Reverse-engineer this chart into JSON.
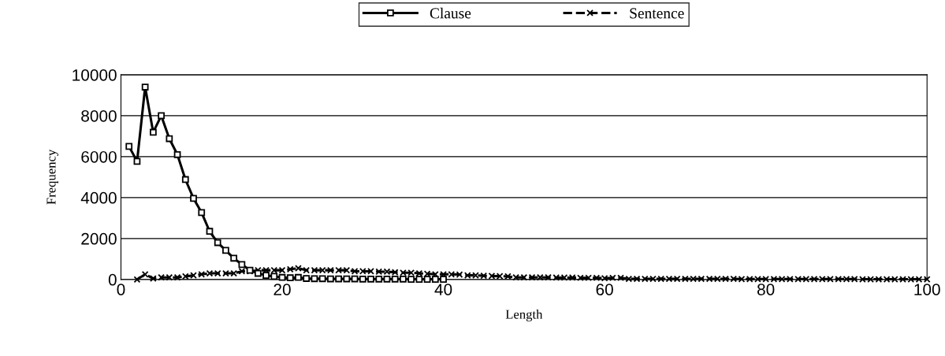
{
  "chart_data": {
    "type": "line",
    "xlabel": "Length",
    "ylabel": "Frequency",
    "xlim": [
      0,
      100
    ],
    "xticks": [
      0,
      20,
      40,
      60,
      80,
      100
    ],
    "ylim": [
      0,
      10000
    ],
    "yticks": [
      0,
      2000,
      4000,
      6000,
      8000,
      10000
    ],
    "grid": "y",
    "legend": "top",
    "series": [
      {
        "name": "Clause",
        "color": "#000000",
        "marker": "square",
        "line_style": "solid",
        "x": [
          1,
          2,
          3,
          4,
          5,
          6,
          7,
          8,
          9,
          10,
          11,
          12,
          13,
          14,
          15,
          16,
          17,
          18,
          19,
          20,
          21,
          22,
          23,
          24,
          25,
          26,
          27,
          28,
          29,
          30,
          31,
          32,
          33,
          34,
          35,
          36,
          37,
          38,
          39,
          40
        ],
        "values": [
          6500,
          5770,
          9400,
          7190,
          8000,
          6880,
          6100,
          4880,
          3960,
          3270,
          2350,
          1800,
          1420,
          1040,
          730,
          450,
          300,
          200,
          150,
          100,
          80,
          100,
          50,
          40,
          40,
          30,
          30,
          30,
          30,
          20,
          20,
          20,
          20,
          20,
          20,
          10,
          10,
          10,
          10,
          10
        ]
      },
      {
        "name": "Sentence",
        "color": "#000000",
        "marker": "cross",
        "line_style": "dashed",
        "x": [
          2,
          3,
          4,
          5,
          6,
          7,
          8,
          9,
          10,
          11,
          12,
          13,
          14,
          15,
          16,
          17,
          18,
          19,
          20,
          21,
          22,
          23,
          24,
          25,
          26,
          27,
          28,
          29,
          30,
          31,
          32,
          33,
          34,
          35,
          36,
          37,
          38,
          39,
          40,
          41,
          42,
          43,
          44,
          45,
          46,
          47,
          48,
          49,
          50,
          51,
          52,
          53,
          54,
          55,
          56,
          57,
          58,
          59,
          60,
          61,
          62,
          63,
          64,
          65,
          66,
          67,
          68,
          69,
          70,
          71,
          72,
          73,
          74,
          75,
          76,
          77,
          78,
          79,
          80,
          81,
          82,
          83,
          84,
          85,
          86,
          87,
          88,
          89,
          90,
          91,
          92,
          93,
          94,
          95,
          96,
          97,
          98,
          99,
          100
        ],
        "values": [
          0,
          250,
          50,
          100,
          100,
          100,
          150,
          200,
          250,
          300,
          300,
          300,
          300,
          400,
          400,
          450,
          450,
          450,
          450,
          500,
          550,
          450,
          450,
          450,
          450,
          450,
          450,
          400,
          400,
          400,
          380,
          380,
          350,
          330,
          330,
          300,
          280,
          250,
          250,
          250,
          240,
          200,
          200,
          180,
          170,
          160,
          150,
          100,
          100,
          100,
          100,
          100,
          90,
          90,
          90,
          80,
          80,
          80,
          60,
          80,
          80,
          30,
          30,
          30,
          30,
          30,
          30,
          30,
          30,
          30,
          30,
          30,
          30,
          30,
          30,
          20,
          20,
          20,
          20,
          20,
          20,
          20,
          20,
          20,
          20,
          20,
          20,
          20,
          20,
          20,
          10,
          10,
          10,
          10,
          10,
          10,
          10,
          10,
          10
        ]
      }
    ]
  }
}
